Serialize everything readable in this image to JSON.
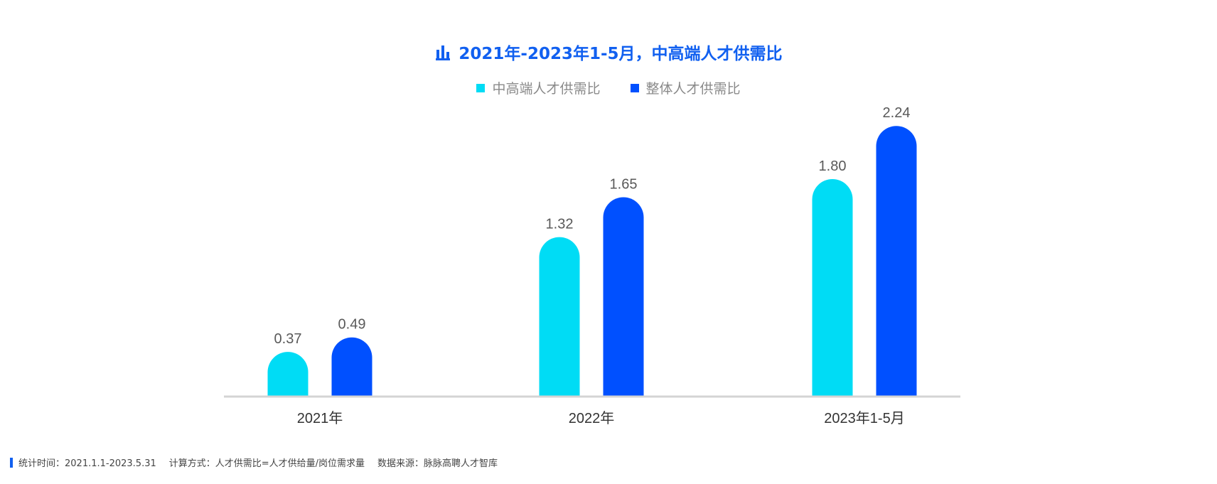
{
  "colors": {
    "title": "#1160f0",
    "series": [
      "#00dcf5",
      "#0050ff"
    ],
    "axis": "#d4d4d4",
    "value_label": "#595959",
    "category_label": "#333333"
  },
  "title_icon": "bar-chart-icon",
  "chart_data": {
    "type": "bar",
    "title": "2021年-2023年1-5月，中高端人才供需比",
    "categories": [
      "2021年",
      "2022年",
      "2023年1-5月"
    ],
    "series": [
      {
        "name": "中高端人才供需比",
        "values": [
          0.37,
          1.32,
          1.8
        ]
      },
      {
        "name": "整体人才供需比",
        "values": [
          0.49,
          1.65,
          2.24
        ]
      }
    ],
    "value_labels": [
      [
        "0.37",
        "1.32",
        "1.80"
      ],
      [
        "0.49",
        "1.65",
        "2.24"
      ]
    ],
    "xlabel": "",
    "ylabel": "",
    "ylim": [
      0,
      2.4
    ],
    "grid": false,
    "legend_position": "top-center"
  },
  "footer": {
    "time": "统计时间：2021.1.1-2023.5.31",
    "method": "计算方式：人才供需比=人才供给量/岗位需求量",
    "source": "数据来源：脉脉高聘人才智库"
  }
}
